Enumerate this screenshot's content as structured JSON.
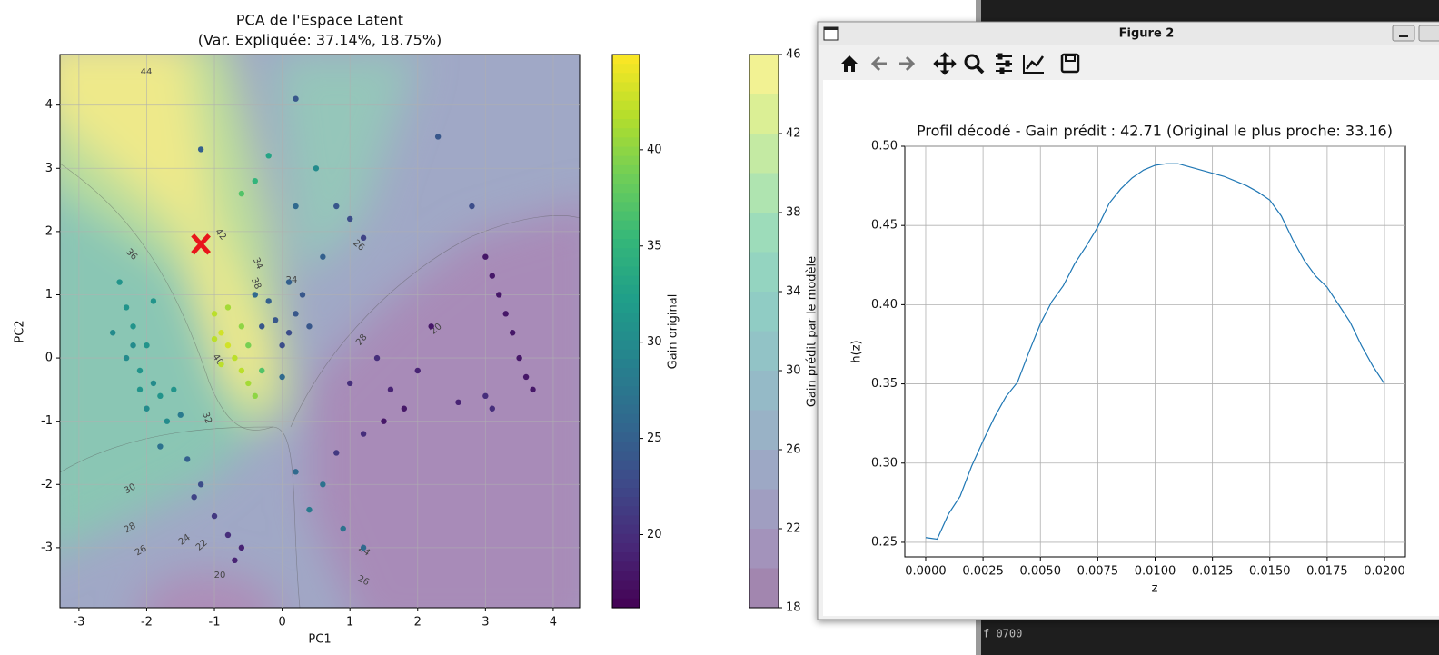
{
  "chart_data": [
    {
      "type": "scatter",
      "title": "PCA de l'Espace Latent",
      "subtitle": "(Var. Expliquée: 37.14%, 18.75%)",
      "xlabel": "PC1",
      "ylabel": "PC2",
      "xlim": [
        -3.28,
        4.39
      ],
      "ylim": [
        -3.95,
        4.8
      ],
      "xticks": [
        -3,
        -2,
        -1,
        0,
        1,
        2,
        3,
        4
      ],
      "yticks": [
        -3,
        -2,
        -1,
        0,
        1,
        2,
        3,
        4
      ],
      "grid": true,
      "x": [
        -2.4,
        -2.3,
        -2.5,
        -2.2,
        -2.0,
        -2.3,
        -2.1,
        -1.9,
        -1.8,
        -2.0,
        -1.7,
        -1.9,
        -2.2,
        -1.6,
        -2.1,
        -1.5,
        -1.8,
        -1.4,
        -1.2,
        -1.3,
        -1.0,
        -0.8,
        -0.6,
        -0.7,
        -1.0,
        -0.9,
        -0.8,
        -0.7,
        -0.6,
        -0.5,
        -0.4,
        -0.8,
        -1.0,
        -0.6,
        -0.3,
        -0.9,
        -0.5,
        -0.3,
        -0.1,
        0.1,
        0.2,
        -0.2,
        0.0,
        0.3,
        0.1,
        -0.4,
        0.4,
        0.0,
        -1.2,
        -0.4,
        -0.6,
        -0.2,
        0.2,
        0.5,
        0.8,
        1.0,
        0.6,
        1.2,
        2.3,
        2.8,
        0.2,
        1.4,
        1.6,
        2.0,
        1.8,
        1.2,
        2.2,
        1.0,
        2.6,
        1.5,
        0.8,
        0.6,
        0.4,
        0.9,
        0.2,
        1.2,
        3.0,
        3.1,
        3.2,
        3.3,
        3.4,
        3.5,
        3.6,
        3.7,
        3.0,
        3.1
      ],
      "y": [
        1.2,
        0.8,
        0.4,
        0.5,
        0.2,
        0.0,
        -0.2,
        -0.4,
        -0.6,
        -0.8,
        -1.0,
        0.9,
        0.2,
        -0.5,
        -0.5,
        -0.9,
        -1.4,
        -1.6,
        -2.0,
        -2.2,
        -2.5,
        -2.8,
        -3.0,
        -3.2,
        0.7,
        0.4,
        0.2,
        0.0,
        -0.2,
        -0.4,
        -0.6,
        0.8,
        0.3,
        0.5,
        -0.2,
        -0.1,
        0.2,
        0.5,
        0.6,
        0.4,
        0.7,
        0.9,
        0.2,
        1.0,
        1.2,
        1.0,
        0.5,
        -0.3,
        3.3,
        2.8,
        2.6,
        3.2,
        2.4,
        3.0,
        2.4,
        2.2,
        1.6,
        1.9,
        3.5,
        2.4,
        4.1,
        0.0,
        -0.5,
        -0.2,
        -0.8,
        -1.2,
        0.5,
        -0.4,
        -0.7,
        -1.0,
        -1.5,
        -2.0,
        -2.4,
        -2.7,
        -1.8,
        -3.0,
        1.6,
        1.3,
        1.0,
        0.7,
        0.4,
        0.0,
        -0.3,
        -0.5,
        -0.6,
        -0.8
      ],
      "values": [
        31,
        31,
        30,
        31,
        31,
        30,
        31,
        30,
        31,
        30,
        30,
        31,
        30,
        31,
        31,
        28,
        27,
        25,
        23,
        22,
        21,
        20,
        19,
        19,
        42,
        43,
        43,
        42,
        42,
        41,
        40,
        41,
        42,
        40,
        37,
        42,
        39,
        24,
        24,
        23,
        24,
        25,
        23,
        24,
        25,
        26,
        24,
        26,
        25,
        35,
        37,
        33,
        26,
        30,
        24,
        23,
        25,
        22,
        24,
        23,
        24,
        20,
        19,
        19,
        18,
        20,
        18,
        20,
        19,
        18,
        21,
        27,
        28,
        27,
        26,
        26,
        18,
        18,
        18,
        18,
        18,
        18,
        18,
        18,
        20,
        20
      ],
      "colorbar": {
        "label": "Gain original",
        "lim": [
          16.2,
          44.95
        ],
        "ticks": [
          20,
          25,
          30,
          35,
          40
        ]
      },
      "contour_colorbar": {
        "label": "Gain prédit par le modèle",
        "lim": [
          18,
          46
        ],
        "ticks": [
          18,
          22,
          26,
          30,
          34,
          38,
          42,
          46
        ],
        "levels": [
          18,
          20,
          22,
          24,
          26,
          28,
          30,
          32,
          34,
          36,
          38,
          40,
          42,
          44,
          46
        ]
      },
      "contour_labels": [
        44,
        42,
        36,
        34,
        38,
        24,
        26,
        20,
        40,
        32,
        30,
        28,
        26,
        24,
        22,
        20,
        24,
        26,
        28
      ],
      "marker": {
        "x": -1.2,
        "y": 1.8,
        "color": "#e8161b"
      }
    },
    {
      "type": "line",
      "title": "Profil décodé - Gain prédit : 42.71 (Original le plus proche: 33.16)",
      "xlabel": "z",
      "ylabel": "h(z)",
      "xlim": [
        -0.00091,
        0.02091
      ],
      "ylim": [
        0.2408,
        0.5
      ],
      "xticks": [
        {
          "value": 0,
          "label": "0.0000"
        },
        {
          "value": 0.0025,
          "label": "0.0025"
        },
        {
          "value": 0.005,
          "label": "0.0050"
        },
        {
          "value": 0.0075,
          "label": "0.0075"
        },
        {
          "value": 0.01,
          "label": "0.0100"
        },
        {
          "value": 0.0125,
          "label": "0.0125"
        },
        {
          "value": 0.015,
          "label": "0.0150"
        },
        {
          "value": 0.0175,
          "label": "0.0175"
        },
        {
          "value": 0.02,
          "label": "0.0200"
        }
      ],
      "yticks": [
        0.25,
        {
          "value": 0.3,
          "label": "0.30"
        },
        0.35,
        {
          "value": 0.4,
          "label": "0.40"
        },
        0.45,
        {
          "value": 0.5,
          "label": "0.50"
        }
      ],
      "grid": true,
      "color": "#1f77b4",
      "x": [
        0,
        0.0005,
        0.001,
        0.0015,
        0.002,
        0.0025,
        0.003,
        0.0035,
        0.004,
        0.0045,
        0.005,
        0.0055,
        0.006,
        0.0065,
        0.007,
        0.0075,
        0.008,
        0.0085,
        0.009,
        0.0095,
        0.01,
        0.0105,
        0.011,
        0.0115,
        0.012,
        0.0125,
        0.013,
        0.0135,
        0.014,
        0.0145,
        0.015,
        0.0155,
        0.016,
        0.0165,
        0.017,
        0.0175,
        0.018,
        0.0185,
        0.019,
        0.0195,
        0.02
      ],
      "values": [
        0.253,
        0.252,
        0.268,
        0.279,
        0.298,
        0.314,
        0.329,
        0.342,
        0.351,
        0.37,
        0.388,
        0.402,
        0.412,
        0.426,
        0.437,
        0.449,
        0.464,
        0.473,
        0.48,
        0.485,
        0.488,
        0.489,
        0.489,
        0.487,
        0.485,
        0.483,
        0.481,
        0.478,
        0.475,
        0.471,
        0.466,
        0.456,
        0.441,
        0.428,
        0.418,
        0.411,
        0.4,
        0.389,
        0.374,
        0.361,
        0.35
      ]
    }
  ],
  "window": {
    "title": "Figure 2"
  },
  "terminal": {
    "text": "f 0700"
  }
}
